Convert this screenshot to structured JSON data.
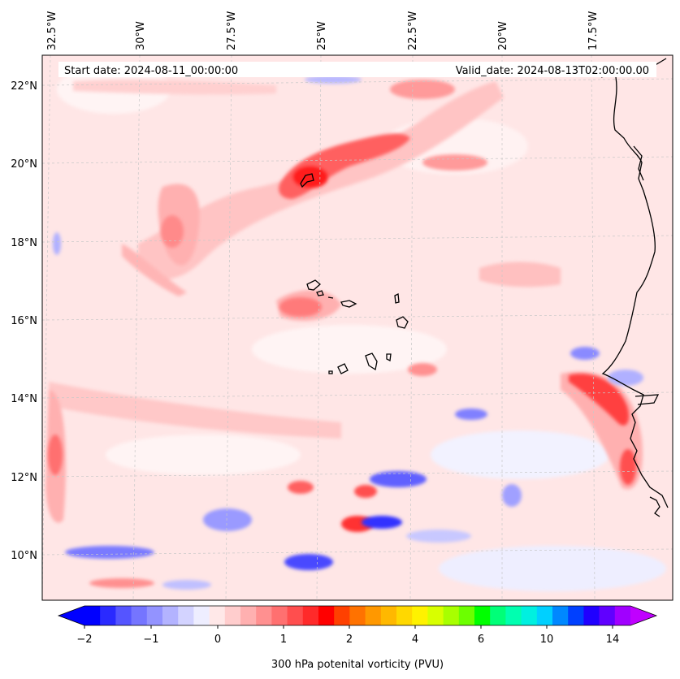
{
  "header": {
    "start_date": "Start date: 2024-08-11_00:00:00",
    "valid_date": "Valid_date: 2024-08-13T02:00:00.00"
  },
  "longitude_labels": [
    "32.5°W",
    "30°W",
    "27.5°W",
    "25°W",
    "22.5°W",
    "20°W",
    "17.5°W"
  ],
  "latitude_labels": [
    "22°N",
    "20°N",
    "18°N",
    "16°N",
    "14°N",
    "12°N",
    "10°N"
  ],
  "colorbar": {
    "label": "300 hPa potenital vorticity (PVU)",
    "tick_labels": [
      "−2",
      "−1",
      "0",
      "1",
      "2",
      "4",
      "6",
      "10",
      "14"
    ],
    "colors": [
      "#0000ff",
      "#2a2aff",
      "#5555ff",
      "#7575ff",
      "#9393ff",
      "#b3b3ff",
      "#d3d3ff",
      "#eeeeff",
      "#ffe8e8",
      "#ffcdcd",
      "#ffb0b0",
      "#ff9090",
      "#ff7070",
      "#ff4e4e",
      "#ff2a2a",
      "#ff0000",
      "#ff4000",
      "#ff7200",
      "#ff9800",
      "#ffb800",
      "#ffd800",
      "#fff200",
      "#d8ff00",
      "#a8ff00",
      "#6cff00",
      "#00ff00",
      "#00ff78",
      "#00ffb0",
      "#00f0e0",
      "#00d0ff",
      "#0088ff",
      "#0040ff",
      "#2000ff",
      "#6000ff",
      "#a000ff"
    ],
    "extend_min_color": "#0000ff",
    "extend_max_color": "#c000ff"
  },
  "colors": {
    "background_field": "#ffe6e6",
    "coastline": "#000000",
    "gridline": "#c8c8c8"
  }
}
